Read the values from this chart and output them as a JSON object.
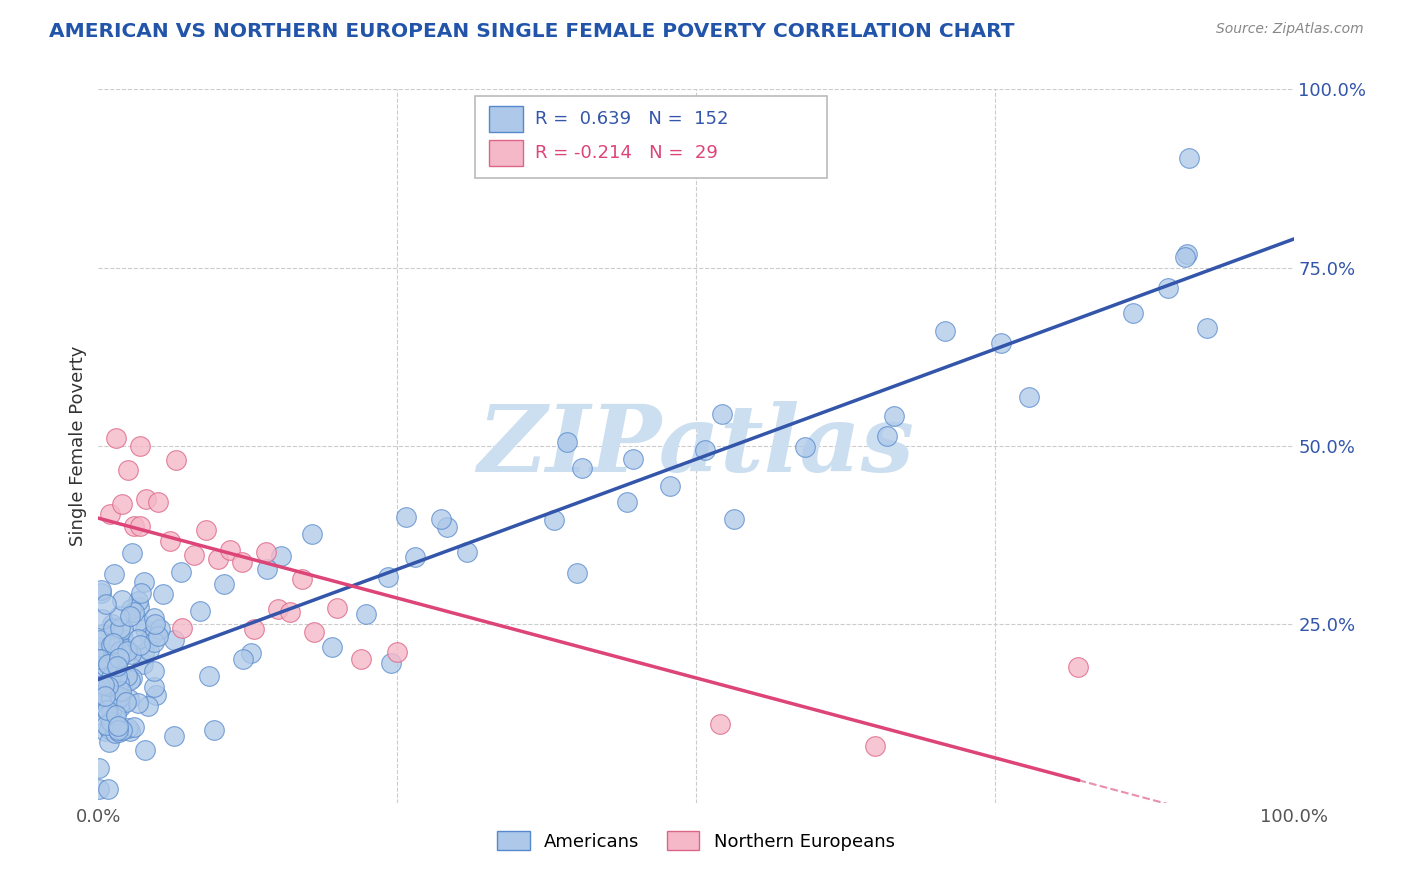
{
  "title": "AMERICAN VS NORTHERN EUROPEAN SINGLE FEMALE POVERTY CORRELATION CHART",
  "source": "Source: ZipAtlas.com",
  "ylabel": "Single Female Poverty",
  "xlim": [
    0.0,
    1.0
  ],
  "ylim": [
    0.0,
    1.0
  ],
  "r_american": 0.639,
  "n_american": 152,
  "r_northern_european": -0.214,
  "n_northern_european": 29,
  "american_color": "#adc8e8",
  "american_edge_color": "#5588cc",
  "northern_european_color": "#f5b8c8",
  "northern_european_edge_color": "#dd6688",
  "regression_american_color": "#3355aa",
  "regression_ne_color": "#dd4477",
  "watermark_color": "#ccdff0",
  "background_color": "#ffffff",
  "grid_color": "#cccccc",
  "title_color": "#2255aa",
  "legend_r_color": "#3355aa",
  "legend_r_ne_color": "#dd4477"
}
